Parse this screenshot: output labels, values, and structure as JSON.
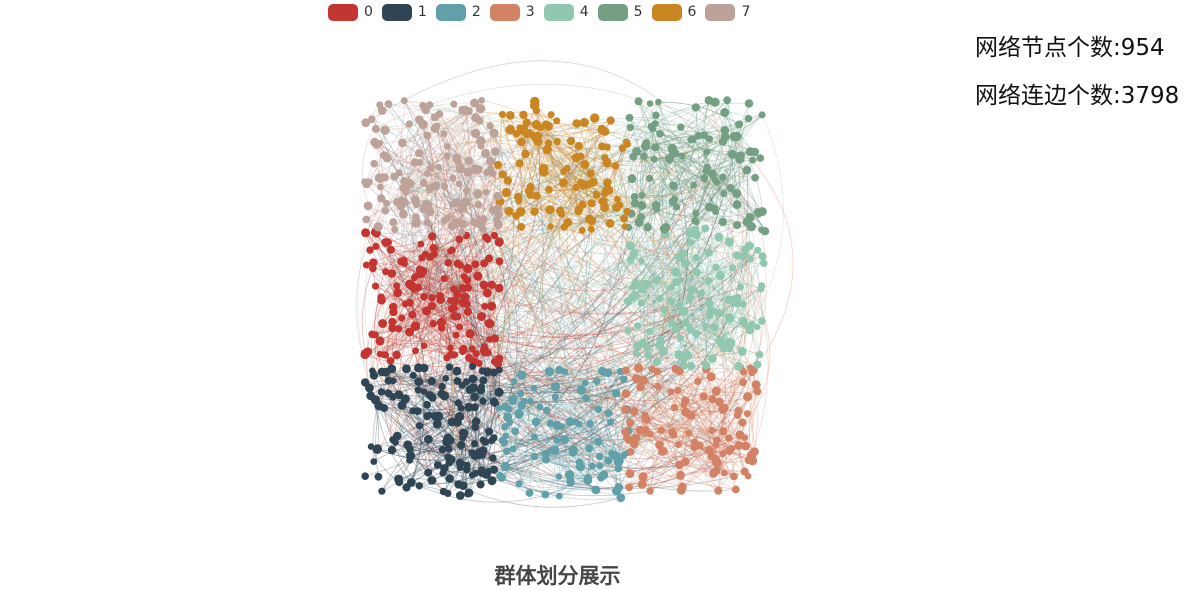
{
  "legend": [
    {
      "label": "0",
      "color": "#c23531"
    },
    {
      "label": "1",
      "color": "#2f4554"
    },
    {
      "label": "2",
      "color": "#61a0a8"
    },
    {
      "label": "3",
      "color": "#d48265"
    },
    {
      "label": "4",
      "color": "#91c7ae"
    },
    {
      "label": "5",
      "color": "#749f83"
    },
    {
      "label": "6",
      "color": "#ca8622"
    },
    {
      "label": "7",
      "color": "#bda29a"
    }
  ],
  "stats": {
    "nodes_text": "网络节点个数:954",
    "edges_text": "网络连边个数:3798"
  },
  "chart_data": {
    "type": "network-graph",
    "title": "群体划分展示",
    "node_count": 954,
    "edge_count": 3798,
    "communities": [
      "0",
      "1",
      "2",
      "3",
      "4",
      "5",
      "6",
      "7"
    ]
  }
}
